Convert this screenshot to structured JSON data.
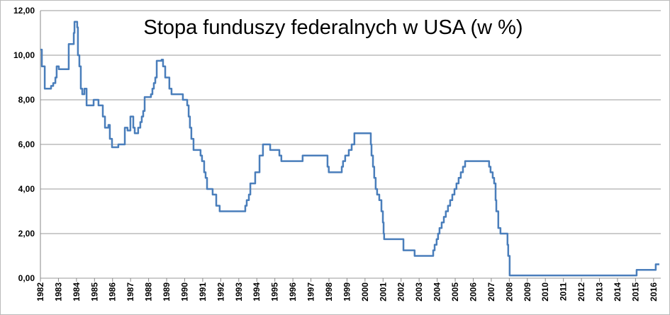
{
  "chart_data": {
    "type": "line",
    "title": "Stopa funduszy federalnych w USA (w %)",
    "color": "#4a7ebb",
    "step": true,
    "grid": true,
    "xlim": [
      1982,
      2016.4
    ],
    "ylim": [
      0,
      12
    ],
    "xticks": [
      1982,
      1983,
      1984,
      1985,
      1986,
      1987,
      1988,
      1989,
      1990,
      1991,
      1992,
      1993,
      1994,
      1995,
      1996,
      1997,
      1998,
      1999,
      2000,
      2001,
      2002,
      2003,
      2004,
      2005,
      2006,
      2007,
      2008,
      2009,
      2010,
      2011,
      2012,
      2013,
      2014,
      2015,
      2016
    ],
    "yticks": [
      {
        "value": 0,
        "label": "0,00"
      },
      {
        "value": 2,
        "label": "2,00"
      },
      {
        "value": 4,
        "label": "4,00"
      },
      {
        "value": 6,
        "label": "6,00"
      },
      {
        "value": 8,
        "label": "8,00"
      },
      {
        "value": 10,
        "label": "10,00"
      },
      {
        "value": 12,
        "label": "12,00"
      }
    ],
    "x": [
      1982.0,
      1982.08,
      1982.24,
      1982.59,
      1982.71,
      1982.83,
      1982.9,
      1983.02,
      1983.57,
      1983.85,
      1983.89,
      1984.04,
      1984.08,
      1984.16,
      1984.24,
      1984.32,
      1984.44,
      1984.56,
      1984.95,
      1985.22,
      1985.46,
      1985.58,
      1985.77,
      1985.85,
      1985.97,
      1986.32,
      1986.68,
      1986.83,
      1986.99,
      1987.15,
      1987.23,
      1987.42,
      1987.54,
      1987.62,
      1987.7,
      1987.78,
      1988.13,
      1988.21,
      1988.29,
      1988.37,
      1988.45,
      1988.72,
      1988.8,
      1988.92,
      1989.15,
      1989.27,
      1989.9,
      1990.14,
      1990.22,
      1990.29,
      1990.37,
      1990.49,
      1990.88,
      1990.96,
      1991.08,
      1991.16,
      1991.24,
      1991.55,
      1991.75,
      1991.94,
      1993.36,
      1993.44,
      1993.56,
      1993.64,
      1993.91,
      1994.15,
      1994.34,
      1994.74,
      1995.25,
      1995.36,
      1996.54,
      1997.92,
      1997.99,
      1998.71,
      1998.78,
      1998.9,
      1999.1,
      1999.26,
      1999.41,
      2000.32,
      2000.36,
      2000.44,
      2000.51,
      2000.59,
      2000.67,
      2000.79,
      2000.91,
      2000.99,
      2001.03,
      2001.06,
      2002.13,
      2002.75,
      2003.78,
      2003.86,
      2003.97,
      2004.05,
      2004.13,
      2004.25,
      2004.37,
      2004.48,
      2004.6,
      2004.72,
      2004.84,
      2004.96,
      2005.07,
      2005.19,
      2005.31,
      2005.43,
      2005.55,
      2006.88,
      2006.96,
      2007.08,
      2007.16,
      2007.24,
      2007.28,
      2007.39,
      2007.51,
      2007.9,
      2007.94,
      2008.02,
      2015.06,
      2016.12,
      2016.32
    ],
    "values": [
      10.25,
      9.5,
      8.5,
      8.625,
      8.75,
      9.0,
      9.5,
      9.375,
      10.5,
      11.0,
      11.5,
      11.25,
      10.0,
      9.5,
      8.5,
      8.25,
      8.5,
      7.75,
      8.0,
      7.75,
      7.25,
      6.75,
      6.875,
      6.25,
      5.875,
      6.0,
      6.75,
      6.625,
      7.25,
      6.75,
      6.5,
      6.75,
      7.0,
      7.25,
      7.5,
      8.125,
      8.25,
      8.5,
      8.75,
      9.0,
      9.75,
      9.8,
      9.5,
      9.0,
      8.5,
      8.25,
      8.0,
      7.75,
      7.25,
      6.75,
      6.25,
      5.75,
      5.5,
      5.25,
      4.75,
      4.5,
      4.0,
      3.75,
      3.25,
      3.0,
      3.25,
      3.5,
      3.75,
      4.25,
      4.75,
      5.5,
      6.0,
      5.75,
      5.5,
      5.25,
      5.5,
      5.0,
      4.75,
      5.0,
      5.25,
      5.5,
      5.75,
      6.0,
      6.5,
      6.0,
      5.5,
      5.0,
      4.5,
      4.0,
      3.75,
      3.5,
      3.0,
      2.5,
      2.0,
      1.75,
      1.25,
      1.0,
      1.25,
      1.5,
      1.75,
      2.0,
      2.25,
      2.5,
      2.75,
      3.0,
      3.25,
      3.5,
      3.75,
      4.0,
      4.25,
      4.5,
      4.75,
      5.0,
      5.25,
      5.0,
      4.75,
      4.5,
      4.25,
      3.5,
      3.0,
      2.25,
      2.0,
      1.5,
      1.0,
      0.125,
      0.375,
      0.625,
      0.625
    ]
  }
}
